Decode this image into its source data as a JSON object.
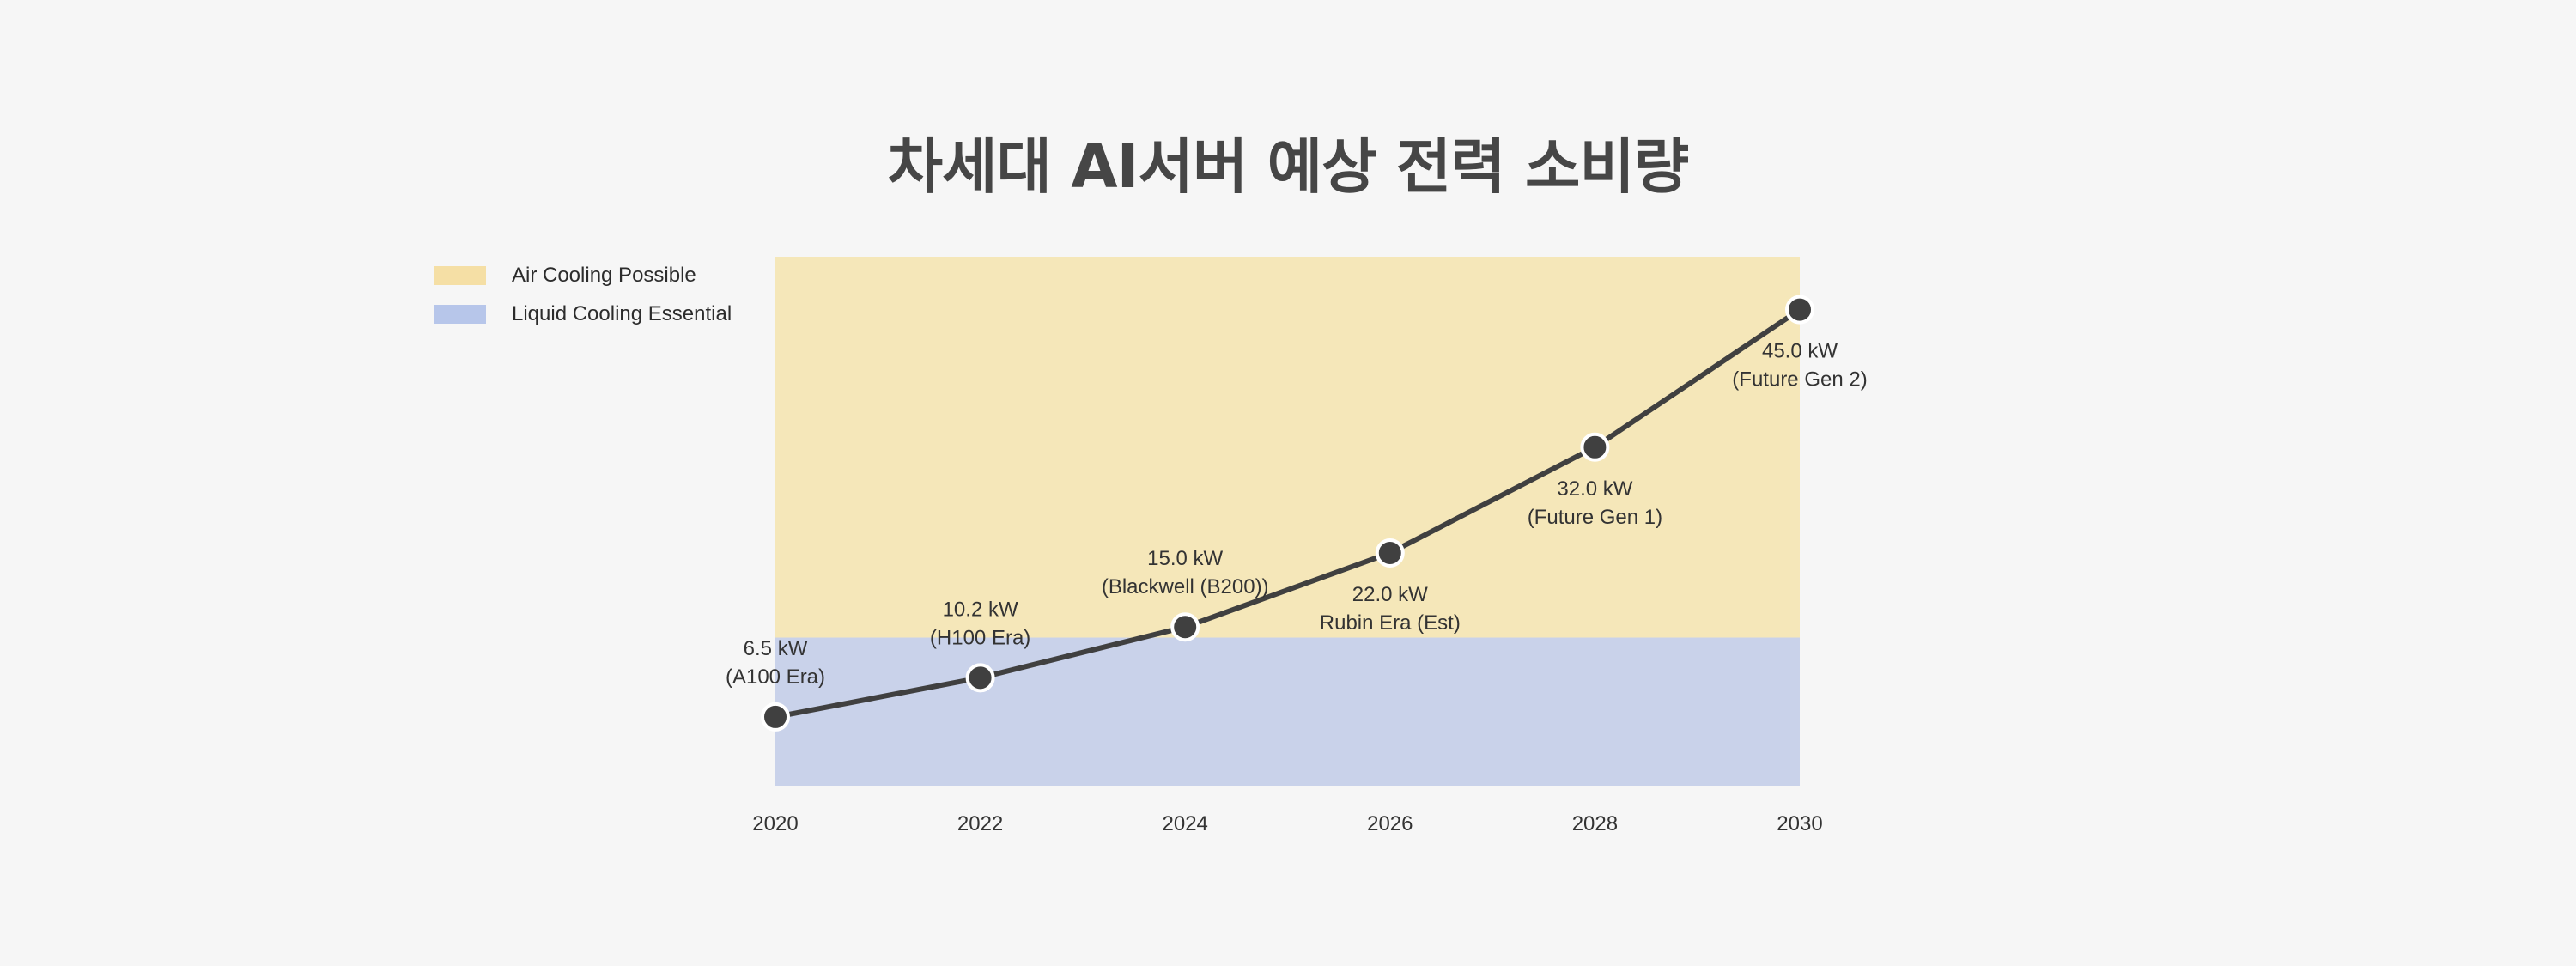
{
  "chart_data": {
    "type": "line",
    "title": "차세대 AI서버 예상 전력 소비량",
    "xlabel": "",
    "ylabel": "",
    "x": [
      2020,
      2022,
      2024,
      2026,
      2028,
      2030
    ],
    "xlim": [
      2020,
      2030
    ],
    "ylim": [
      0,
      50
    ],
    "grid": false,
    "legend_position": "top-left",
    "series": [
      {
        "values": [
          6.5,
          10.2,
          15.0,
          22.0,
          32.0,
          45.0
        ],
        "color": "#404040",
        "labels": [
          [
            "6.5 kW",
            "(A100 Era)"
          ],
          [
            "10.2 kW",
            "(H100 Era)"
          ],
          [
            "15.0 kW",
            "(Blackwell (B200))"
          ],
          [
            "22.0 kW",
            "Rubin Era (Est)"
          ],
          [
            "32.0 kW",
            "(Future Gen 1)"
          ],
          [
            "45.0 kW",
            "(Future Gen 2)"
          ]
        ]
      }
    ],
    "bands": [
      {
        "name": "Air Cooling Possible",
        "y0": 14.0,
        "y1": 50,
        "color": "#f5e7b9"
      },
      {
        "name": "Liquid Cooling Essential",
        "y0": 0,
        "y1": 14.0,
        "color": "#c9d2ea"
      }
    ],
    "legend_swatch_colors": [
      "#f5dfa5",
      "#b7c6ea"
    ]
  }
}
